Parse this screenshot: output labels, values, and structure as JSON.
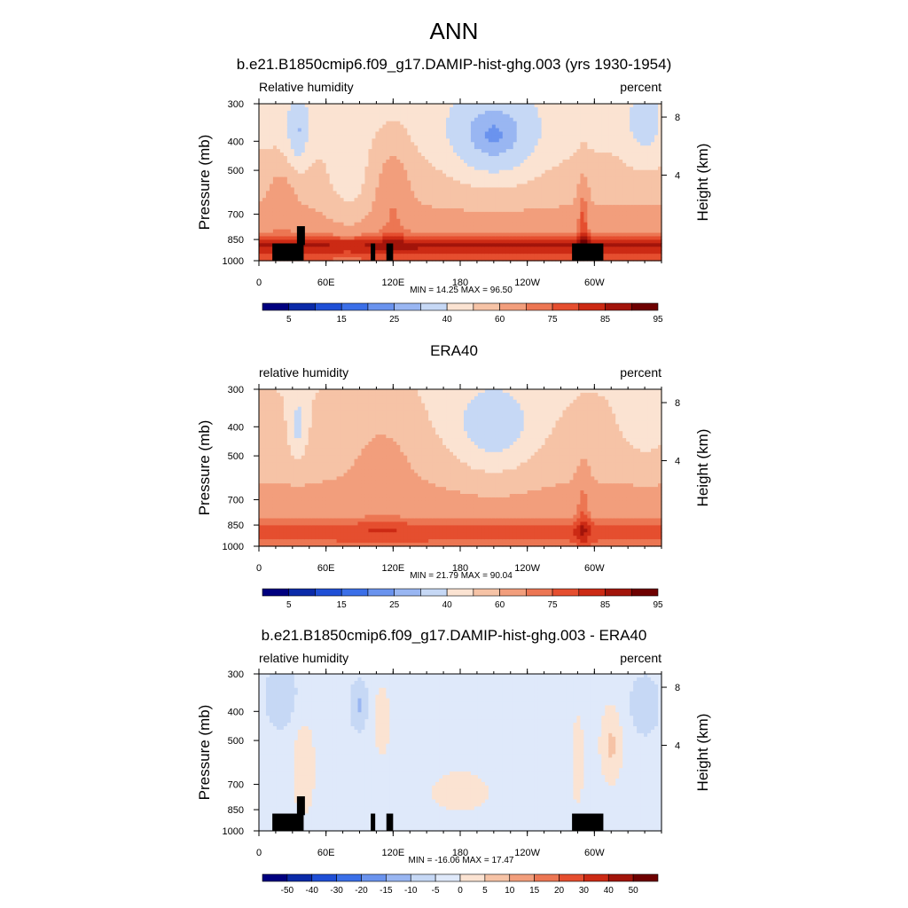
{
  "main_title": "ANN",
  "panels": [
    {
      "title": "b.e21.B1850cmip6.f09_g17.DAMIP-hist-ghg.003 (yrs 1930-1954)",
      "left_label": "Relative humidity",
      "right_label": "percent",
      "stats": "MIN =  14.25  MAX =  96.50"
    },
    {
      "title": "ERA40",
      "left_label": "relative humidity",
      "right_label": "percent",
      "stats": "MIN =  21.79  MAX =  90.04"
    },
    {
      "title": "b.e21.B1850cmip6.f09_g17.DAMIP-hist-ghg.003 - ERA40",
      "left_label": "relative humidity",
      "right_label": "percent",
      "stats": "MIN = -16.06  MAX =  17.47"
    }
  ],
  "chart_data": [
    {
      "type": "heatmap",
      "title": "b.e21.B1850cmip6.f09_g17.DAMIP-hist-ghg.003 (yrs 1930-1954)",
      "xlabel": "",
      "ylabel": "Pressure (mb)",
      "y2label": "Height (km)",
      "x_ticks": [
        "0",
        "60E",
        "120E",
        "180",
        "120W",
        "60W"
      ],
      "y_ticks": [
        "300",
        "400",
        "500",
        "700",
        "850",
        "1000"
      ],
      "y2_ticks": [
        "8",
        "4"
      ],
      "ylim": [
        1000,
        300
      ],
      "xlim": [
        0,
        360
      ],
      "min": 14.25,
      "max": 96.5,
      "colorbar_labels": [
        "5",
        "15",
        "25",
        "40",
        "60",
        "75",
        "85",
        "95"
      ],
      "masked_columns": [
        [
          12,
          40
        ],
        [
          100,
          104
        ],
        [
          114,
          120
        ],
        [
          280,
          308
        ]
      ]
    },
    {
      "type": "heatmap",
      "title": "ERA40",
      "xlabel": "",
      "ylabel": "Pressure (mb)",
      "y2label": "Height (km)",
      "x_ticks": [
        "0",
        "60E",
        "120E",
        "180",
        "120W",
        "60W"
      ],
      "y_ticks": [
        "300",
        "400",
        "500",
        "700",
        "850",
        "1000"
      ],
      "y2_ticks": [
        "8",
        "4"
      ],
      "ylim": [
        1000,
        300
      ],
      "xlim": [
        0,
        360
      ],
      "min": 21.79,
      "max": 90.04,
      "colorbar_labels": [
        "5",
        "15",
        "25",
        "40",
        "60",
        "75",
        "85",
        "95"
      ]
    },
    {
      "type": "heatmap",
      "title": "b.e21.B1850cmip6.f09_g17.DAMIP-hist-ghg.003 - ERA40",
      "xlabel": "",
      "ylabel": "Pressure (mb)",
      "y2label": "Height (km)",
      "x_ticks": [
        "0",
        "60E",
        "120E",
        "180",
        "120W",
        "60W"
      ],
      "y_ticks": [
        "300",
        "400",
        "500",
        "700",
        "850",
        "1000"
      ],
      "y2_ticks": [
        "8",
        "4"
      ],
      "ylim": [
        1000,
        300
      ],
      "xlim": [
        0,
        360
      ],
      "min": -16.06,
      "max": 17.47,
      "colorbar_labels": [
        "-50",
        "-40",
        "-30",
        "-20",
        "-15",
        "-10",
        "-5",
        "0",
        "5",
        "10",
        "15",
        "20",
        "30",
        "40",
        "50"
      ],
      "masked_columns": [
        [
          12,
          40
        ],
        [
          100,
          104
        ],
        [
          114,
          120
        ],
        [
          280,
          308
        ]
      ]
    }
  ],
  "colors": {
    "abs_scale": [
      "#00007f",
      "#0a2aa8",
      "#1f4fd6",
      "#3b6fe8",
      "#6a93ee",
      "#99b6f2",
      "#c6d8f5",
      "#fbe3d2",
      "#f6c3a6",
      "#f29e7c",
      "#ec7653",
      "#e54e2f",
      "#cc2a14",
      "#a2140a",
      "#6e0000"
    ],
    "diff_scale": [
      "#00007f",
      "#0a2aa8",
      "#1f4fd6",
      "#3b6fe8",
      "#6a93ee",
      "#99b6f2",
      "#c6d8f5",
      "#dfe9fa",
      "#fbe3d2",
      "#f6c3a6",
      "#f29e7c",
      "#ec7653",
      "#e54e2f",
      "#cc2a14",
      "#a2140a",
      "#6e0000"
    ]
  }
}
